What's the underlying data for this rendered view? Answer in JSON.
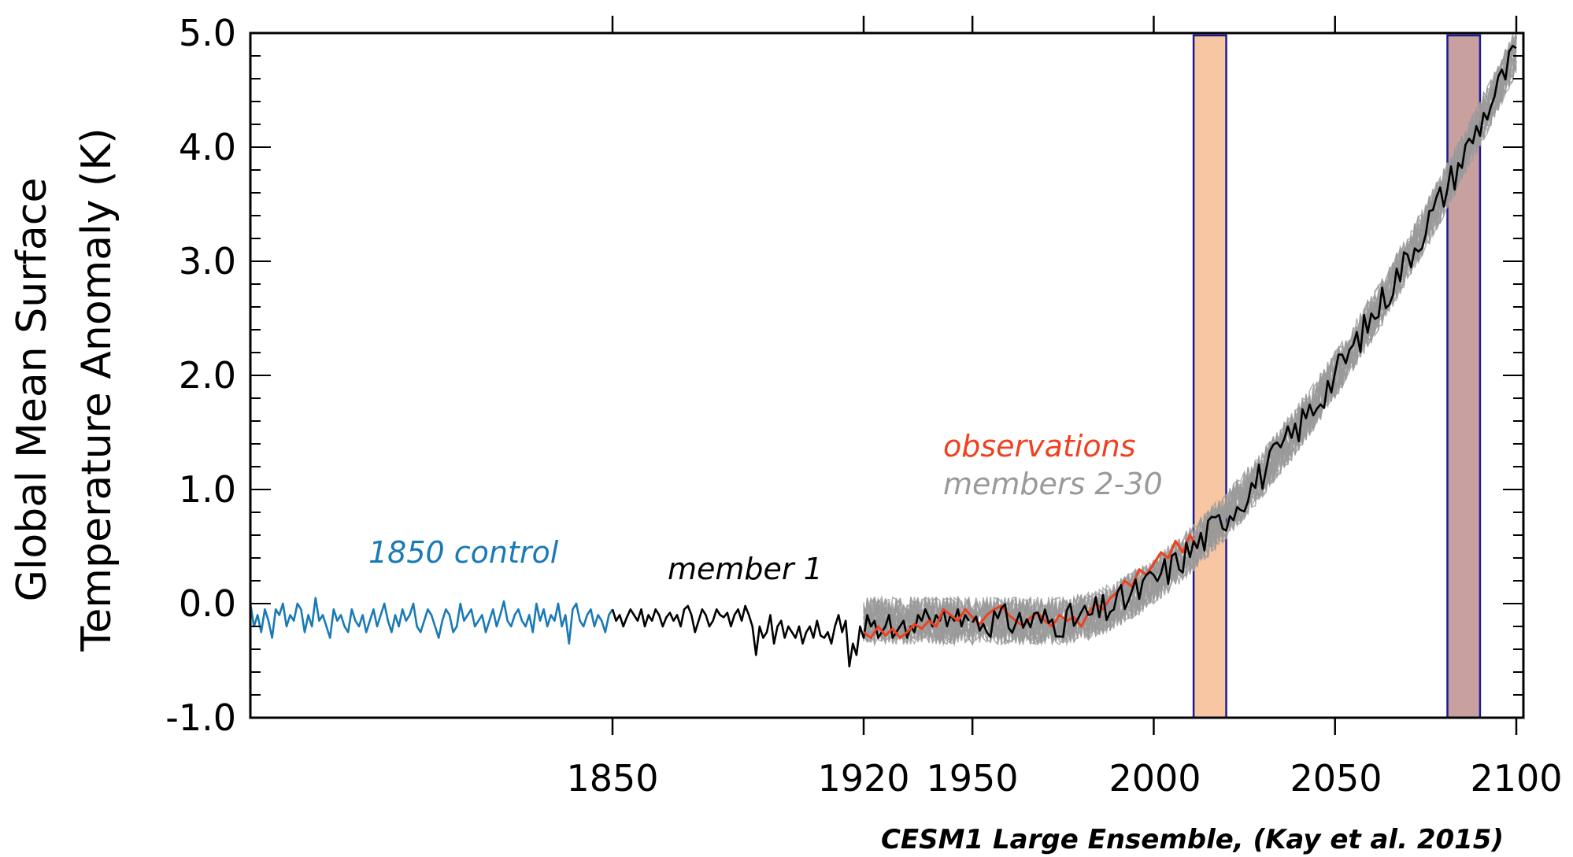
{
  "chart_data": {
    "type": "line",
    "ylabel_lines": [
      "Global Mean Surface",
      "Temperature Anomaly (K)"
    ],
    "ylim": [
      -1.0,
      5.0
    ],
    "yticks": [
      "5.0",
      "4.0",
      "3.0",
      "2.0",
      "1.0",
      "0.0",
      "-1.0"
    ],
    "xticks": [
      "1850",
      "1920",
      "1950",
      "2000",
      "2050",
      "2100"
    ],
    "credit": "CESM1 Large Ensemble, (Kay et al. 2015)",
    "annotations": {
      "control": "1850 control",
      "member1": "member 1",
      "observations": "observations",
      "members": "members 2-30"
    },
    "colors": {
      "control": "#1a7ab5",
      "member1": "#000000",
      "observations": "#f0401f",
      "members": "#9a9a9a",
      "box_2010s": "#f9c6a3",
      "box_2080s": "#c9a0a0",
      "box_edge": "#1c1c8c"
    },
    "highlight_periods": [
      {
        "start": 2011,
        "end": 2020,
        "color": "box_2010s"
      },
      {
        "start": 2081,
        "end": 2090,
        "color": "box_2080s"
      }
    ],
    "series": [
      {
        "name": "1850 control",
        "color": "control",
        "x_start": 1750,
        "x_step": 1,
        "values": [
          0.0,
          -0.2,
          -0.1,
          -0.25,
          -0.05,
          -0.15,
          -0.3,
          -0.05,
          -0.1,
          0.0,
          -0.2,
          -0.1,
          -0.15,
          0.0,
          -0.05,
          -0.25,
          -0.1,
          -0.2,
          0.05,
          -0.15,
          -0.1,
          -0.2,
          -0.3,
          -0.05,
          -0.15,
          -0.1,
          -0.2,
          -0.25,
          -0.05,
          -0.15,
          -0.2,
          -0.1,
          -0.25,
          -0.15,
          -0.05,
          -0.2,
          -0.1,
          0.0,
          -0.15,
          -0.25,
          -0.1,
          -0.2,
          -0.05,
          -0.15,
          -0.1,
          0.0,
          -0.2,
          -0.25,
          -0.15,
          -0.05,
          -0.1,
          -0.2,
          -0.3,
          -0.15,
          -0.05,
          -0.1,
          -0.25,
          -0.2,
          0.0,
          -0.15,
          -0.1,
          -0.05,
          -0.2,
          -0.15,
          -0.1,
          -0.25,
          -0.15,
          -0.05,
          -0.2,
          -0.1,
          0.02,
          -0.15,
          -0.2,
          -0.1,
          -0.05,
          -0.15,
          -0.2,
          -0.1,
          -0.25,
          0.0,
          -0.15,
          -0.05,
          -0.2,
          -0.1,
          -0.15,
          0.0,
          -0.2,
          -0.1,
          -0.35,
          -0.05,
          0.0,
          -0.15,
          -0.2,
          -0.1,
          -0.05,
          -0.2,
          -0.1,
          -0.15,
          -0.25,
          -0.1,
          -0.05
        ]
      },
      {
        "name": "member 1",
        "color": "member1",
        "x_start": 1850,
        "x_step": 1,
        "values": [
          -0.05,
          -0.15,
          -0.1,
          -0.2,
          -0.12,
          -0.05,
          -0.1,
          -0.15,
          -0.05,
          -0.2,
          -0.1,
          -0.15,
          -0.05,
          -0.1,
          -0.2,
          -0.12,
          -0.08,
          -0.15,
          -0.1,
          -0.2,
          -0.05,
          -0.02,
          -0.1,
          -0.25,
          -0.15,
          -0.05,
          -0.1,
          -0.2,
          -0.15,
          -0.05,
          -0.1,
          -0.12,
          -0.08,
          -0.2,
          -0.1,
          -0.05,
          -0.15,
          -0.02,
          -0.1,
          -0.2,
          -0.45,
          -0.2,
          -0.3,
          -0.25,
          -0.1,
          -0.35,
          -0.2,
          -0.15,
          -0.3,
          -0.2,
          -0.25,
          -0.3,
          -0.2,
          -0.35,
          -0.25,
          -0.2,
          -0.3,
          -0.15,
          -0.28,
          -0.3,
          -0.25,
          -0.35,
          -0.2,
          -0.1,
          -0.25,
          -0.15,
          -0.55,
          -0.35,
          -0.45,
          -0.2,
          -0.3,
          -0.1,
          -0.2,
          -0.15,
          -0.3,
          -0.25,
          -0.2,
          -0.1,
          -0.3,
          -0.25,
          -0.2,
          -0.15,
          -0.3,
          -0.2,
          -0.25,
          -0.1,
          -0.15,
          -0.05,
          -0.12,
          -0.2,
          -0.1,
          -0.15,
          -0.05,
          -0.2,
          -0.1,
          -0.15,
          -0.05,
          -0.2,
          -0.1,
          -0.15
        ]
      },
      {
        "name": "observations",
        "color": "observations",
        "x_start": 1920,
        "x_step": 2,
        "values": [
          -0.25,
          -0.3,
          -0.2,
          -0.28,
          -0.22,
          -0.3,
          -0.25,
          -0.18,
          -0.22,
          -0.15,
          -0.2,
          -0.05,
          -0.1,
          -0.15,
          -0.05,
          -0.12,
          -0.18,
          -0.1,
          -0.05,
          -0.02,
          -0.1,
          -0.15,
          -0.2,
          -0.12,
          -0.08,
          -0.15,
          -0.2,
          -0.1,
          -0.15,
          -0.12,
          -0.2,
          -0.08,
          0.0,
          -0.05,
          0.05,
          0.1,
          0.2,
          0.15,
          0.3,
          0.25,
          0.35,
          0.45,
          0.4,
          0.55,
          0.45,
          0.6,
          0.5
        ]
      }
    ]
  }
}
